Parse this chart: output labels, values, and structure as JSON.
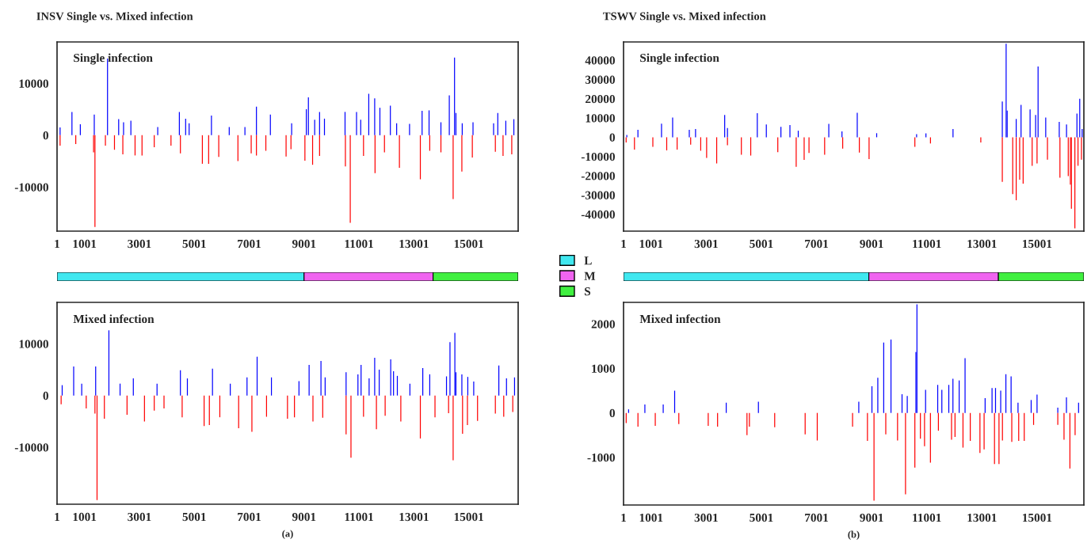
{
  "chart_data": [
    {
      "type": "bar",
      "title": "INSV Single vs. Mixed infection",
      "annotations": [
        "Single infection"
      ],
      "xlim": [
        1,
        16800
      ],
      "xticks": [
        1,
        1001,
        3001,
        5001,
        7001,
        9001,
        11001,
        13001,
        15001
      ],
      "ylim": [
        -18500,
        18000
      ],
      "yticks": [
        -10000,
        0,
        10000
      ],
      "grid": false,
      "legend": false,
      "series": [
        {
          "color": "#0000ff",
          "x": [
            112,
            544,
            849,
            1357,
            1840,
            2246,
            2424,
            2691,
            3669,
            4457,
            4686,
            4813,
            5626,
            6274,
            6846,
            7265,
            7773,
            8548,
            9082,
            9158,
            9387,
            9565,
            9743,
            10493,
            10912,
            11064,
            11357,
            11573,
            11763,
            12144,
            12373,
            12843,
            13300,
            13554,
            13986,
            14291,
            14482,
            14533,
            14762,
            15155,
            15905,
            16058,
            16350,
            16643
          ],
          "values": [
            1500,
            4500,
            2100,
            4000,
            14800,
            3100,
            2500,
            2800,
            1600,
            4500,
            3200,
            2300,
            3800,
            1600,
            1600,
            5500,
            4000,
            2300,
            5000,
            7300,
            3000,
            4500,
            3200,
            4500,
            4500,
            3000,
            8000,
            7100,
            5300,
            5700,
            2300,
            2200,
            4700,
            4800,
            2500,
            7700,
            15000,
            4300,
            2300,
            2500,
            2300,
            4300,
            2800,
            3100
          ]
        },
        {
          "color": "#ff0000",
          "x": [
            112,
            683,
            1332,
            1382,
            1763,
            2093,
            2398,
            2843,
            3097,
            3542,
            4152,
            4495,
            5295,
            5524,
            5892,
            6591,
            7074,
            7265,
            7608,
            8345,
            8523,
            9031,
            9311,
            9565,
            10506,
            10683,
            11166,
            11586,
            11929,
            12474,
            13236,
            13579,
            13986,
            14431,
            14749,
            15130,
            15969,
            16249,
            16567
          ],
          "values": [
            -2000,
            -1700,
            -3300,
            -17700,
            -2000,
            -2800,
            -3700,
            -3900,
            -3900,
            -2300,
            -2000,
            -3500,
            -5500,
            -5500,
            -4200,
            -5000,
            -3500,
            -3900,
            -3000,
            -4100,
            -2700,
            -4900,
            -5700,
            -4000,
            -6000,
            -16900,
            -4000,
            -7300,
            -3300,
            -6300,
            -8500,
            -3000,
            -3300,
            -12300,
            -7000,
            -4300,
            -3200,
            -4000,
            -3700
          ]
        }
      ]
    },
    {
      "type": "bar",
      "title": "TSWV Single vs. Mixed infection",
      "annotations": [
        "Single infection"
      ],
      "xlim": [
        1,
        16700
      ],
      "xticks": [
        1,
        1001,
        3001,
        5001,
        7001,
        9001,
        11001,
        13001,
        15001
      ],
      "ylim": [
        -48750,
        49500
      ],
      "yticks": [
        -40000,
        -30000,
        -20000,
        -10000,
        0,
        10000,
        20000,
        30000,
        40000
      ],
      "grid": false,
      "legend": false,
      "series": [
        {
          "color": "#0000ff",
          "x": [
            120,
            523,
            1379,
            1782,
            2386,
            2613,
            3670,
            3771,
            4853,
            5181,
            5710,
            6037,
            6339,
            7447,
            7925,
            8479,
            9184,
            10632,
            10971,
            11953,
            13741,
            13880,
            13918,
            14245,
            14421,
            14749,
            14950,
            15039,
            15316,
            15807,
            16071,
            16449,
            16550,
            16638
          ],
          "values": [
            1200,
            3900,
            7100,
            10200,
            3900,
            4300,
            11600,
            4800,
            12500,
            6600,
            5400,
            6300,
            3400,
            7000,
            3000,
            12700,
            2100,
            1600,
            2000,
            4300,
            18600,
            48600,
            13800,
            9500,
            16800,
            14500,
            11600,
            36800,
            10200,
            8000,
            6600,
            12300,
            20000,
            4300
          ]
        },
        {
          "color": "#ff0000",
          "x": [
            95,
            397,
            1064,
            1567,
            1945,
            2436,
            2801,
            3015,
            3380,
            3771,
            4275,
            4615,
            5597,
            6264,
            6553,
            6729,
            7296,
            7951,
            8555,
            8908,
            10569,
            11135,
            12961,
            13741,
            14119,
            14245,
            14371,
            14497,
            14824,
            15001,
            15379,
            15832,
            16134,
            16210,
            16248,
            16374,
            16487,
            16613
          ],
          "values": [
            -2700,
            -6400,
            -5000,
            -6800,
            -6400,
            -3800,
            -7000,
            -10700,
            -13600,
            -4100,
            -9100,
            -9500,
            -7700,
            -15400,
            -11800,
            -8200,
            -9100,
            -5900,
            -8000,
            -11300,
            -5000,
            -3200,
            -2700,
            -23200,
            -29500,
            -32700,
            -22000,
            -24100,
            -14800,
            -13600,
            -11600,
            -21000,
            -20200,
            -24600,
            -37100,
            -47300,
            -14800,
            -11600
          ]
        }
      ]
    },
    {
      "type": "bar",
      "orientation": "horizontal",
      "stacked": true,
      "categories": [
        null
      ],
      "xlim": [
        1,
        16800
      ],
      "tick_labels": false,
      "legend": "right",
      "grid": false,
      "series": [
        {
          "name": "L",
          "color": "#40e8f0",
          "values": [
            9000
          ]
        },
        {
          "name": "M",
          "color": "#f064f0",
          "values": [
            4700
          ]
        },
        {
          "name": "S",
          "color": "#40f040",
          "values": [
            3100
          ]
        }
      ]
    },
    {
      "type": "bar",
      "orientation": "horizontal",
      "stacked": true,
      "categories": [
        null
      ],
      "xlim": [
        1,
        16700
      ],
      "tick_labels": false,
      "legend": false,
      "grid": false,
      "series": [
        {
          "color": "#40e8f0",
          "values": [
            8900
          ]
        },
        {
          "color": "#f064f0",
          "values": [
            4700
          ]
        },
        {
          "color": "#40f040",
          "values": [
            3100
          ]
        }
      ]
    },
    {
      "type": "bar",
      "xlabel": "(a)",
      "annotations": [
        "Mixed infection"
      ],
      "xlim": [
        1,
        16800
      ],
      "xticks": [
        1,
        1001,
        3001,
        5001,
        7001,
        9001,
        11001,
        13001,
        15001
      ],
      "ylim": [
        -21000,
        18000
      ],
      "yticks": [
        -10000,
        0,
        10000
      ],
      "grid": false,
      "legend": false,
      "series": [
        {
          "color": "#0000ff",
          "x": [
            188,
            607,
            900,
            1408,
            1890,
            2297,
            2780,
            3644,
            4495,
            4749,
            5664,
            6312,
            6922,
            7290,
            7811,
            8815,
            9184,
            9616,
            9768,
            10531,
            10963,
            11077,
            11370,
            11573,
            11738,
            12157,
            12259,
            12398,
            12856,
            13325,
            13579,
            14189,
            14316,
            14494,
            14533,
            14749,
            14965,
            15181,
            16096,
            16375,
            16668
          ],
          "values": [
            2000,
            5600,
            2300,
            5600,
            12600,
            2300,
            3300,
            2300,
            4900,
            3300,
            5200,
            2300,
            3500,
            7500,
            3500,
            2800,
            5900,
            6700,
            3500,
            4500,
            4100,
            5900,
            3300,
            7300,
            5000,
            7000,
            4700,
            3800,
            2300,
            5300,
            4100,
            3700,
            10300,
            12100,
            4500,
            4100,
            3600,
            2700,
            5800,
            3300,
            3500
          ]
        },
        {
          "color": "#ff0000",
          "x": [
            150,
            1064,
            1382,
            1458,
            1725,
            2551,
            3186,
            3542,
            3898,
            4559,
            5359,
            5550,
            5931,
            6617,
            7100,
            7633,
            8396,
            8650,
            9324,
            9680,
            10531,
            10709,
            11166,
            11636,
            11954,
            12525,
            13236,
            13770,
            14265,
            14431,
            14774,
            14952,
            15320,
            15969,
            16274,
            16604
          ],
          "values": [
            -1700,
            -2500,
            -3500,
            -20200,
            -4500,
            -3700,
            -5000,
            -2900,
            -2500,
            -4200,
            -5900,
            -5700,
            -4200,
            -6300,
            -7000,
            -4100,
            -4500,
            -4200,
            -5000,
            -4300,
            -7500,
            -12000,
            -4100,
            -6500,
            -3900,
            -5000,
            -8300,
            -4200,
            -3400,
            -12500,
            -7400,
            -5700,
            -4900,
            -3500,
            -4100,
            -3200
          ]
        }
      ]
    },
    {
      "type": "bar",
      "xlabel": "(b)",
      "annotations": [
        "Mixed infection"
      ],
      "xlim": [
        1,
        16700
      ],
      "xticks": [
        1,
        1001,
        3001,
        5001,
        7001,
        9001,
        11001,
        13001,
        15001
      ],
      "ylim": [
        -2070,
        2485
      ],
      "yticks": [
        -1000,
        0,
        1000,
        2000
      ],
      "grid": false,
      "legend": false,
      "series": [
        {
          "color": "#0000ff",
          "x": [
            185,
            775,
            1440,
            1855,
            3726,
            4894,
            8535,
            9012,
            9225,
            9439,
            9703,
            10104,
            10293,
            10607,
            10645,
            10958,
            11398,
            11548,
            11800,
            11950,
            12176,
            12390,
            13118,
            13369,
            13495,
            13683,
            13871,
            14060,
            14311,
            14788,
            15001,
            15754,
            16068,
            16508
          ],
          "values": [
            80,
            190,
            190,
            500,
            230,
            250,
            250,
            600,
            790,
            1580,
            1650,
            420,
            380,
            1370,
            2440,
            520,
            630,
            520,
            630,
            770,
            730,
            1230,
            330,
            560,
            560,
            500,
            870,
            820,
            230,
            290,
            410,
            120,
            350,
            230
          ]
        },
        {
          "color": "#ff0000",
          "x": [
            97,
            524,
            1152,
            2006,
            3073,
            3412,
            4479,
            4567,
            5484,
            6589,
            7028,
            8309,
            8849,
            9087,
            9514,
            9941,
            10230,
            10569,
            10770,
            10920,
            11134,
            11423,
            11900,
            12026,
            12315,
            12579,
            12930,
            13081,
            13458,
            13621,
            13746,
            14085,
            14336,
            14537,
            14876,
            15754,
            15980,
            16194,
            16382
          ],
          "values": [
            -230,
            -310,
            -290,
            -250,
            -290,
            -310,
            -500,
            -310,
            -320,
            -480,
            -620,
            -310,
            -630,
            -1970,
            -480,
            -620,
            -1830,
            -1230,
            -580,
            -750,
            -1120,
            -400,
            -600,
            -540,
            -780,
            -630,
            -900,
            -820,
            -1150,
            -1150,
            -620,
            -650,
            -630,
            -630,
            -270,
            -270,
            -600,
            -1250,
            -500
          ]
        }
      ]
    }
  ]
}
